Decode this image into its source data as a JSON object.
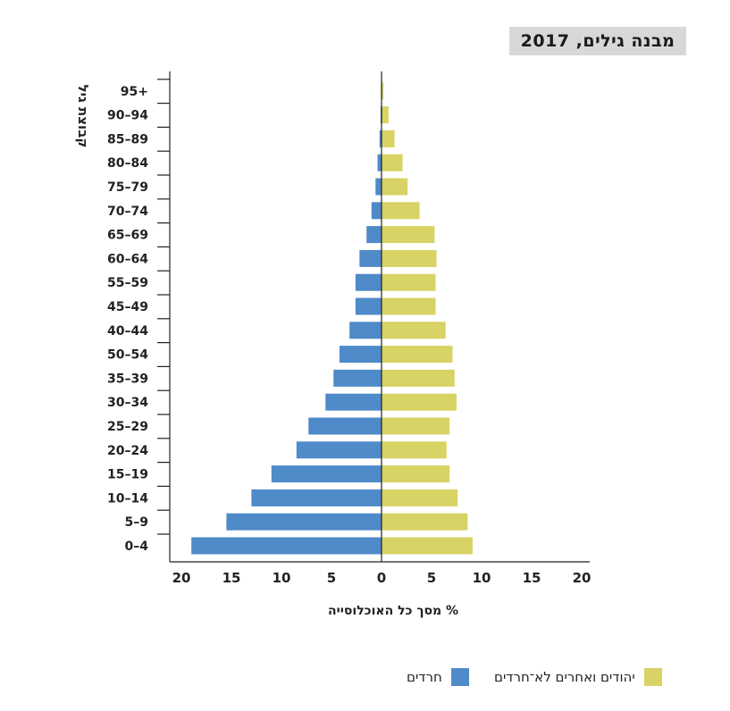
{
  "colors": {
    "series_a": "#d7d364",
    "series_b": "#4f8ac9",
    "axis": "#222222"
  },
  "chart_data": {
    "type": "bar",
    "orientation": "horizontal-population-pyramid",
    "title": "מבנה גילים, 2017",
    "xlabel": "% מסך כל האוכלוסייה",
    "ylabel": "קבוצת גיל",
    "xlim": [
      -20,
      20
    ],
    "x_ticks": [
      20,
      15,
      10,
      5,
      0,
      5,
      10,
      15,
      20
    ],
    "categories": [
      "0–4",
      "5–9",
      "10–14",
      "15–19",
      "20–24",
      "25–29",
      "30–34",
      "35–39",
      "50–54",
      "40–44",
      "45–49",
      "55–59",
      "60–64",
      "65–69",
      "70–74",
      "75–79",
      "80–84",
      "85–89",
      "90–94",
      "95+"
    ],
    "series": [
      {
        "name": "חרדים",
        "side": "left",
        "values": [
          19,
          15.5,
          13,
          11,
          8.5,
          7.3,
          5.6,
          4.8,
          4.2,
          3.2,
          2.6,
          2.6,
          2.2,
          1.5,
          1.0,
          0.6,
          0.4,
          0.2,
          0.1,
          0.05
        ]
      },
      {
        "name": "יהודים ואחרים לא־חרדים",
        "side": "right",
        "values": [
          9.1,
          8.6,
          7.6,
          6.8,
          6.5,
          6.8,
          7.5,
          7.3,
          7.1,
          6.4,
          5.4,
          5.4,
          5.5,
          5.3,
          3.8,
          2.6,
          2.1,
          1.3,
          0.7,
          0.2
        ]
      }
    ],
    "grid": false,
    "legend_position": "bottom"
  }
}
